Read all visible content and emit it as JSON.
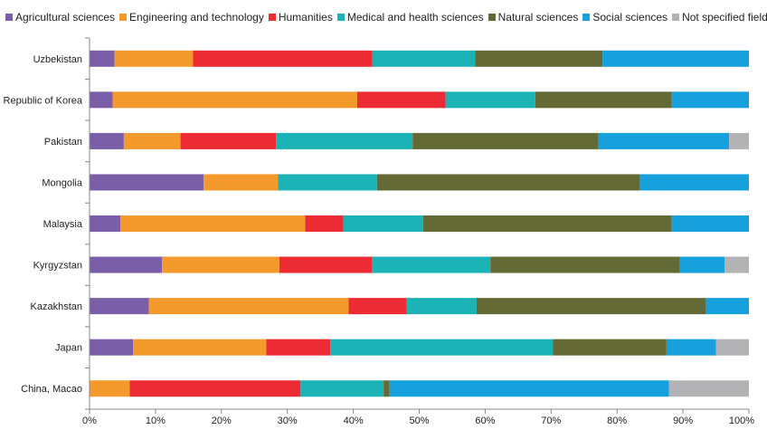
{
  "chart_data": {
    "type": "bar",
    "orientation": "horizontal",
    "stacked": true,
    "percent_stacked": true,
    "categories": [
      "Uzbekistan",
      "Republic of Korea",
      "Pakistan",
      "Mongolia",
      "Malaysia",
      "Kyrgyzstan",
      "Kazakhstan",
      "Japan",
      "China, Macao"
    ],
    "series": [
      {
        "name": "Agricultural sciences",
        "color": "#7b5ea8",
        "values": [
          3.8,
          3.5,
          5.2,
          17.3,
          4.7,
          11.0,
          9.0,
          6.6,
          0
        ]
      },
      {
        "name": "Engineering and technology",
        "color": "#f49a2c",
        "values": [
          11.9,
          37.1,
          8.6,
          11.3,
          28.0,
          17.8,
          30.3,
          20.2,
          6.1
        ]
      },
      {
        "name": "Humanities",
        "color": "#ec2b34",
        "values": [
          27.2,
          13.4,
          14.5,
          0,
          5.8,
          14.0,
          8.8,
          9.7,
          25.9
        ]
      },
      {
        "name": "Medical and health sciences",
        "color": "#1bb3b5",
        "values": [
          15.6,
          13.6,
          20.7,
          15.0,
          12.1,
          18.0,
          10.6,
          33.8,
          12.6
        ]
      },
      {
        "name": "Natural sciences",
        "color": "#646a35",
        "values": [
          19.3,
          20.7,
          28.2,
          39.9,
          37.7,
          28.7,
          34.8,
          17.2,
          0.9
        ]
      },
      {
        "name": "Social sciences",
        "color": "#16a0dc",
        "values": [
          22.2,
          11.7,
          19.8,
          16.5,
          11.7,
          6.8,
          6.5,
          7.5,
          42.4
        ]
      },
      {
        "name": "Not specified fields",
        "color": "#b3b3b6",
        "values": [
          0,
          0,
          3.0,
          0,
          0,
          3.7,
          0,
          5.0,
          12.1
        ]
      }
    ],
    "x_tick_labels": [
      "0%",
      "10%",
      "20%",
      "30%",
      "40%",
      "50%",
      "60%",
      "70%",
      "80%",
      "90%",
      "100%"
    ],
    "xlim": [
      0,
      100
    ],
    "title": "",
    "xlabel": "",
    "ylabel": "",
    "legend_position": "top",
    "grid": false
  }
}
